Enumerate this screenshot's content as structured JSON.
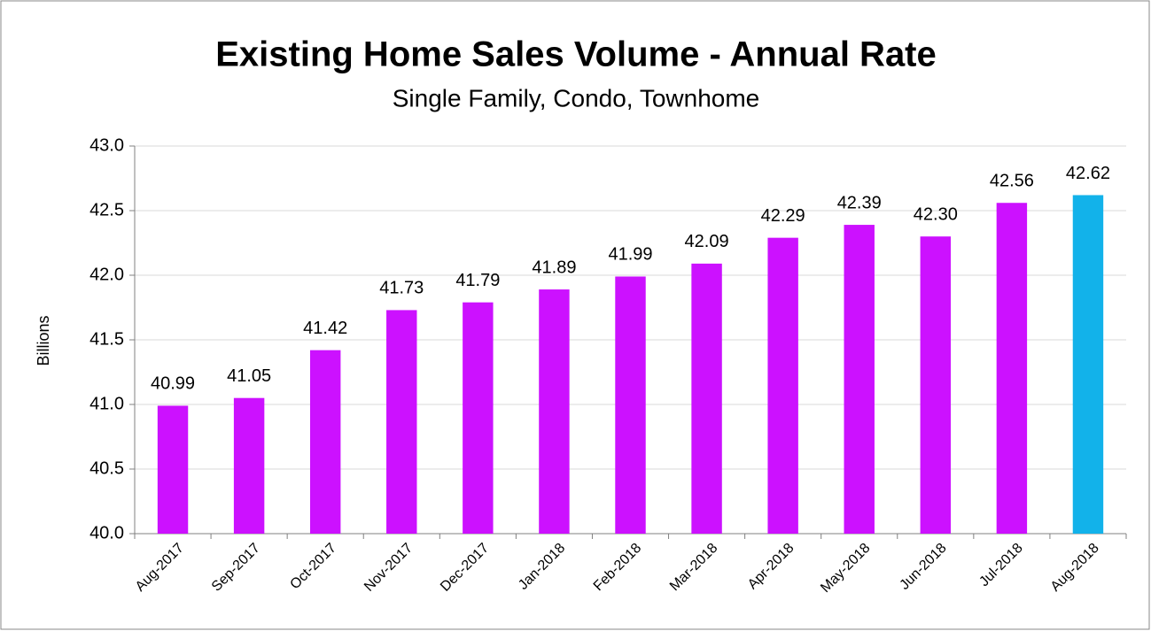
{
  "chart_data": {
    "type": "bar",
    "title": "Existing Home Sales Volume - Annual Rate",
    "subtitle": "Single Family, Condo, Townhome",
    "y_label": "Billions",
    "categories": [
      "Aug-2017",
      "Sep-2017",
      "Oct-2017",
      "Nov-2017",
      "Dec-2017",
      "Jan-2018",
      "Feb-2018",
      "Mar-2018",
      "Apr-2018",
      "May-2018",
      "Jun-2018",
      "Jul-2018",
      "Aug-2018"
    ],
    "values": [
      40.99,
      41.05,
      41.42,
      41.73,
      41.79,
      41.89,
      41.99,
      42.09,
      42.29,
      42.39,
      42.3,
      42.56,
      42.62
    ],
    "value_labels": [
      "40.99",
      "41.05",
      "41.42",
      "41.73",
      "41.79",
      "41.89",
      "41.99",
      "42.09",
      "42.29",
      "42.39",
      "42.30",
      "42.56",
      "42.62"
    ],
    "colors": [
      "#cc11ff",
      "#cc11ff",
      "#cc11ff",
      "#cc11ff",
      "#cc11ff",
      "#cc11ff",
      "#cc11ff",
      "#cc11ff",
      "#cc11ff",
      "#cc11ff",
      "#cc11ff",
      "#cc11ff",
      "#12b2ea"
    ],
    "ylim": [
      40,
      43
    ],
    "yticks": [
      {
        "value": 40,
        "label": "40.0"
      },
      40.5,
      {
        "value": 41,
        "label": "41.0"
      },
      41.5,
      {
        "value": 42,
        "label": "42.0"
      },
      42.5,
      {
        "value": 43,
        "label": "43.0"
      }
    ],
    "grid": true
  }
}
